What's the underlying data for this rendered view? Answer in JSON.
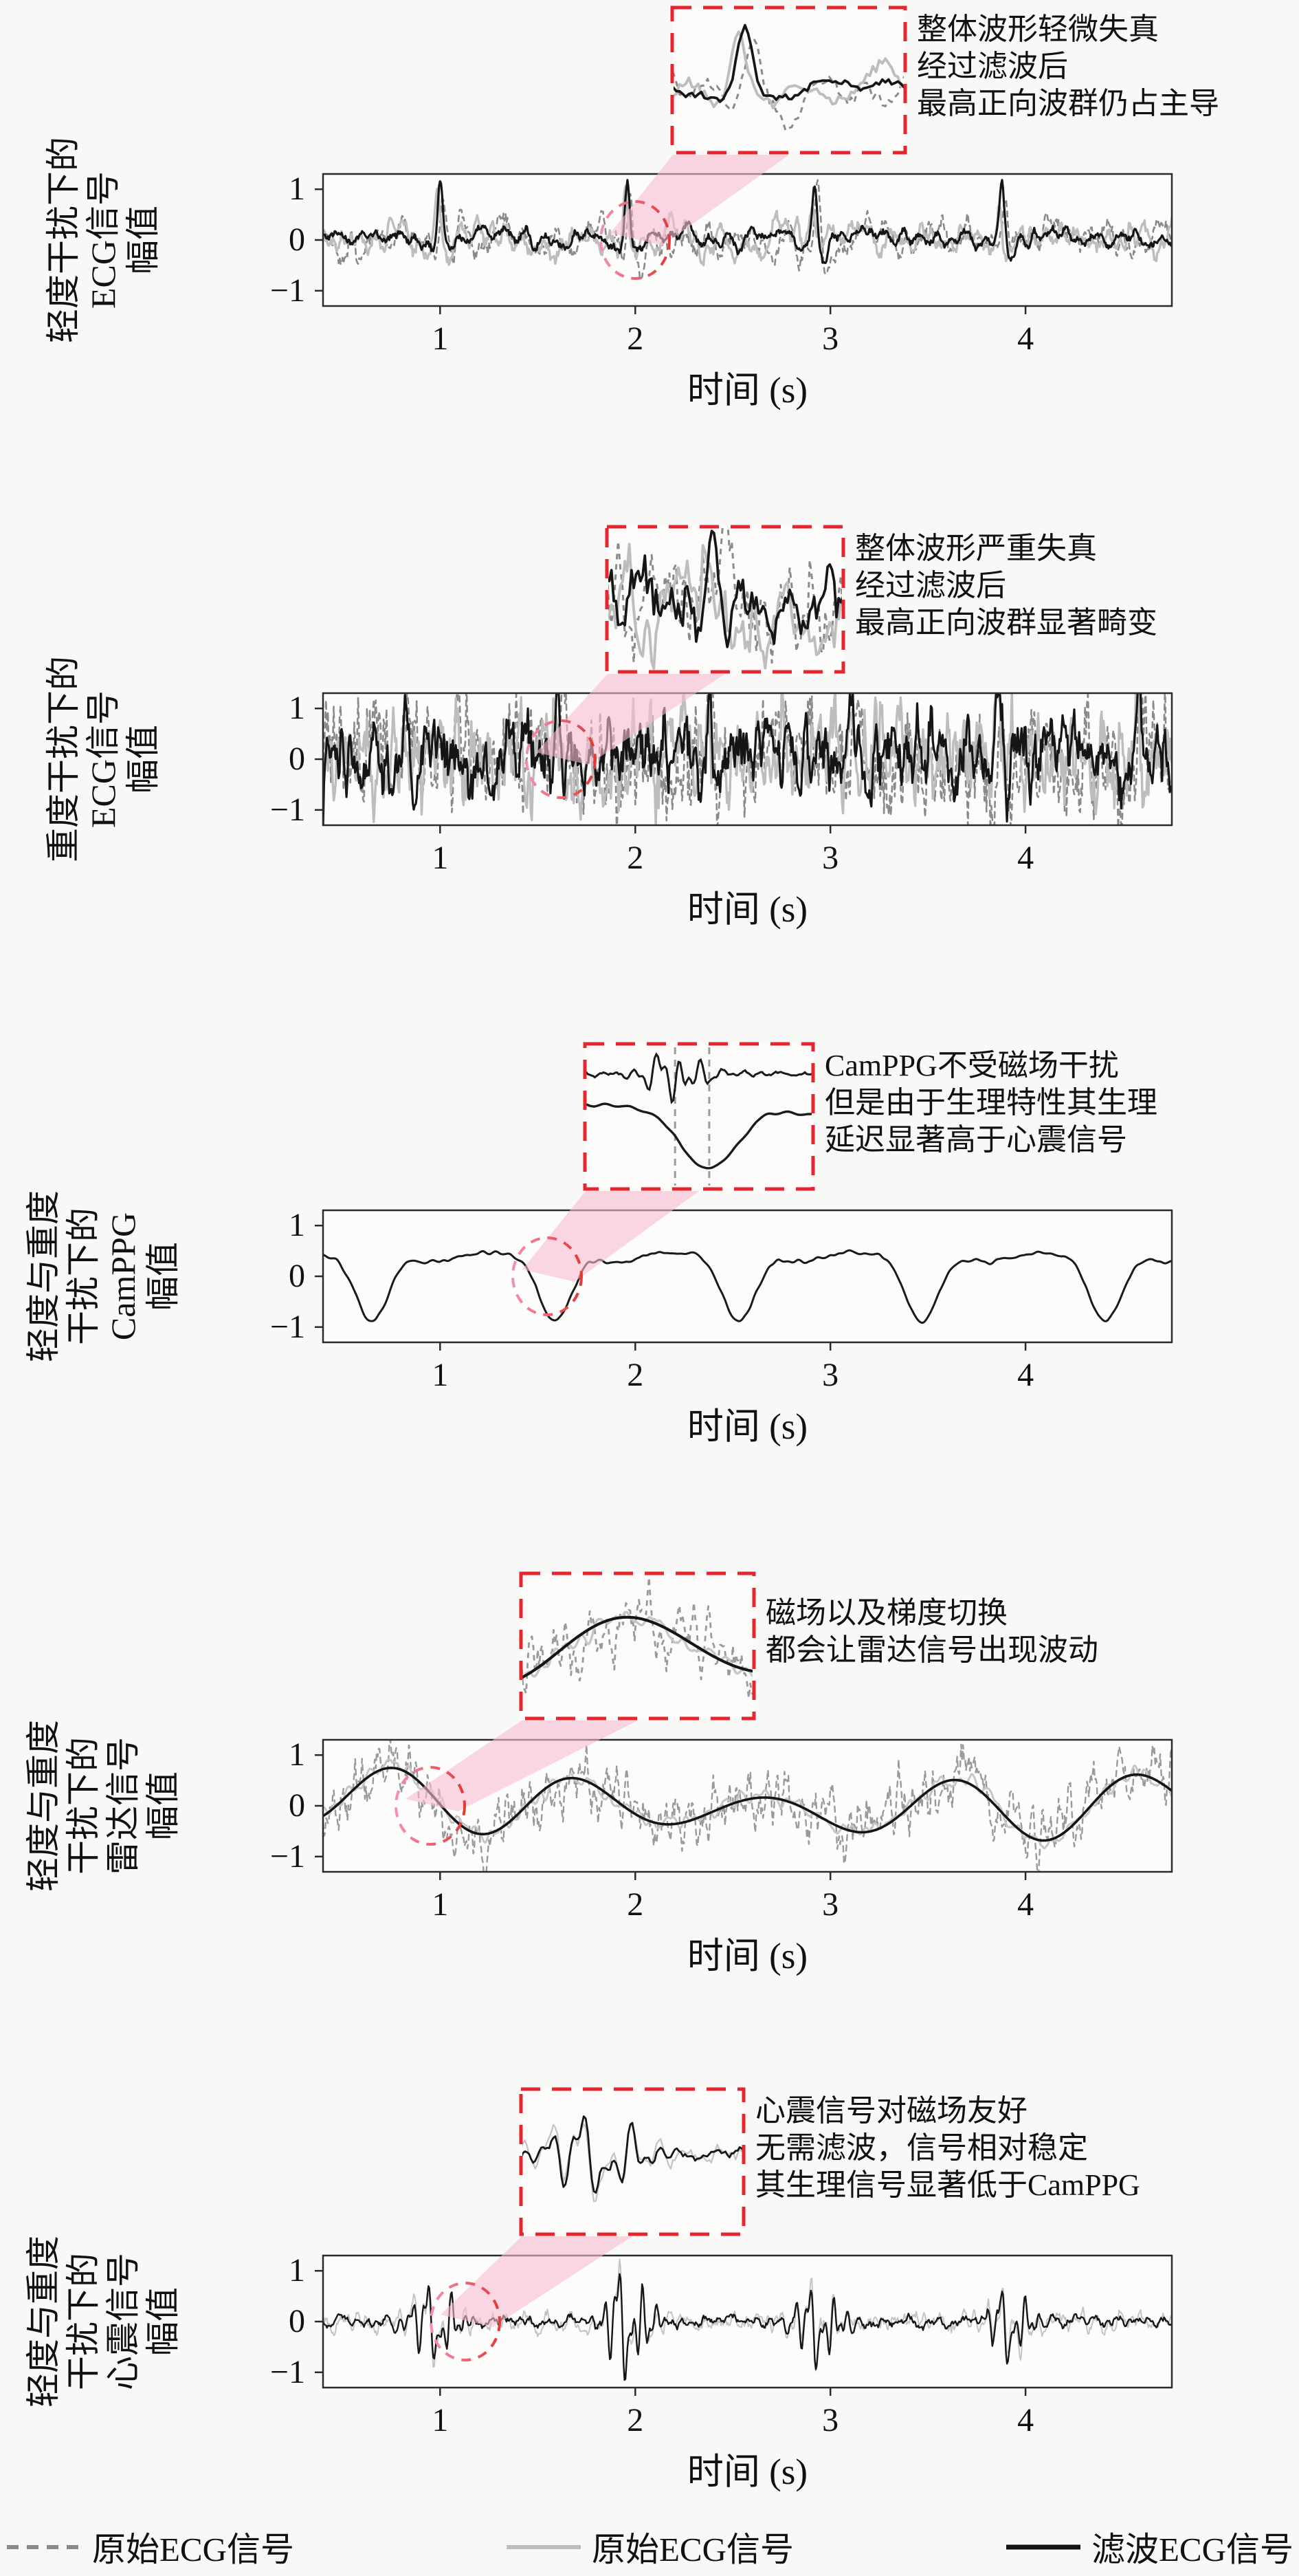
{
  "figure": {
    "background": "#f8f8f6",
    "plot_bg": "#fcfcfa",
    "inset_bg": "#fbfbf9",
    "axis_color": "#2b2b2b",
    "accent_red": "#e5262e",
    "pink_highlight": "#f9bdd2"
  },
  "legend": {
    "items": [
      {
        "label": "原始ECG信号",
        "line_style": "dashed",
        "color": "#8a8a8a"
      },
      {
        "label": "原始ECG信号",
        "line_style": "solid",
        "color": "#bdbdbd"
      },
      {
        "label": "滤波ECG信号",
        "line_style": "solid",
        "color": "#141414"
      }
    ]
  },
  "subplots": [
    {
      "id": "ecg-light",
      "ylabel_lines": [
        "轻度干扰下的",
        "ECG信号",
        "幅值"
      ],
      "annotation_lines": [
        "整体波形轻微失真",
        "经过滤波后",
        "最高正向波群仍占主导"
      ],
      "xlabel": "时间 (s)",
      "xticks": [
        "1",
        "2",
        "3",
        "4"
      ],
      "yticks": [
        "1",
        "0",
        "−1"
      ]
    },
    {
      "id": "ecg-heavy",
      "ylabel_lines": [
        "重度干扰下的",
        "ECG信号",
        "幅值"
      ],
      "annotation_lines": [
        "整体波形严重失真",
        "经过滤波后",
        "最高正向波群显著畸变"
      ],
      "xlabel": "时间 (s)",
      "xticks": [
        "1",
        "2",
        "3",
        "4"
      ],
      "yticks": [
        "1",
        "0",
        "−1"
      ]
    },
    {
      "id": "camppg",
      "ylabel_lines": [
        "轻度与重度",
        "干扰下的",
        "CamPPG",
        "幅值"
      ],
      "annotation_lines": [
        "CamPPG不受磁场干扰",
        "但是由于生理特性其生理",
        "延迟显著高于心震信号"
      ],
      "xlabel": "时间 (s)",
      "xticks": [
        "1",
        "2",
        "3",
        "4"
      ],
      "yticks": [
        "1",
        "0",
        "−1"
      ]
    },
    {
      "id": "radar",
      "ylabel_lines": [
        "轻度与重度",
        "干扰下的",
        "雷达信号",
        "幅值"
      ],
      "annotation_lines": [
        "磁场以及梯度切换",
        "都会让雷达信号出现波动"
      ],
      "xlabel": "时间 (s)",
      "xticks": [
        "1",
        "2",
        "3",
        "4"
      ],
      "yticks": [
        "1",
        "0",
        "−1"
      ]
    },
    {
      "id": "scg",
      "ylabel_lines": [
        "轻度与重度",
        "干扰下的",
        "心震信号",
        "幅值"
      ],
      "annotation_lines": [
        "心震信号对磁场友好",
        "无需滤波，信号相对稳定",
        "其生理信号显著低于CamPPG"
      ],
      "xlabel": "时间 (s)",
      "xticks": [
        "1",
        "2",
        "3",
        "4"
      ],
      "yticks": [
        "1",
        "0",
        "−1"
      ]
    }
  ],
  "chart_data": [
    {
      "type": "line",
      "signal": "ecg",
      "interference": "light",
      "xlabel": "时间 (s)",
      "xlim": [
        0.4,
        4.75
      ],
      "ylim": [
        -1.3,
        1.3
      ],
      "xticks": [
        1,
        2,
        3,
        4
      ],
      "yticks": [
        -1,
        0,
        1
      ],
      "grid": false,
      "legend_position": "figure-bottom",
      "r_peak_times": [
        1.0,
        1.96,
        2.92,
        3.88
      ],
      "r_peak_amps": [
        1,
        1,
        1,
        1
      ],
      "series": [
        {
          "role": "raw-ecg-dashed",
          "style": "dashed",
          "color": "#8a8a8a",
          "width": 2.6,
          "noise": 0.2
        },
        {
          "role": "raw-ecg-solid",
          "style": "solid",
          "color": "#bdbdbd",
          "width": 3.4,
          "noise": 0.17
        },
        {
          "role": "filtered-ecg",
          "style": "solid",
          "color": "#151515",
          "width": 3.2,
          "noise": 0.09
        }
      ],
      "highlight": {
        "circle_t": 2.0,
        "inset_window": [
          1.84,
          2.22
        ]
      }
    },
    {
      "type": "line",
      "signal": "ecg",
      "interference": "heavy",
      "xlabel": "时间 (s)",
      "xlim": [
        0.4,
        4.75
      ],
      "ylim": [
        -1.3,
        1.3
      ],
      "xticks": [
        1,
        2,
        3,
        4
      ],
      "yticks": [
        -1,
        0,
        1
      ],
      "grid": false,
      "r_peak_times": [
        0.82,
        1.6,
        2.38,
        3.12,
        3.86,
        4.58
      ],
      "r_peak_amps": [
        0.85,
        1.0,
        1.15,
        0.8,
        0.9,
        0.95
      ],
      "series": [
        {
          "role": "raw-ecg-dashed",
          "style": "dashed",
          "color": "#8a8a8a",
          "width": 2.6,
          "noise": 0.5
        },
        {
          "role": "raw-ecg-solid",
          "style": "solid",
          "color": "#bdbdbd",
          "width": 3.4,
          "noise": 0.44
        },
        {
          "role": "filtered-ecg",
          "style": "solid",
          "color": "#151515",
          "width": 3.2,
          "noise": 0.36
        }
      ],
      "highlight": {
        "circle_t": 1.62,
        "inset_window": [
          1.36,
          1.9
        ]
      }
    },
    {
      "type": "line",
      "signal": "ppg",
      "xlabel": "时间 (s)",
      "xlim": [
        0.4,
        4.75
      ],
      "ylim": [
        -1.3,
        1.3
      ],
      "xticks": [
        1,
        2,
        3,
        4
      ],
      "yticks": [
        -1,
        0,
        1
      ],
      "grid": false,
      "pulse_period": 0.94,
      "valley_times": [
        0.65,
        1.59,
        2.53,
        3.47,
        4.41
      ],
      "series": [
        {
          "role": "camppg",
          "style": "solid",
          "color": "#1a1a1a",
          "width": 3.0,
          "noise": 0.02
        }
      ],
      "highlight": {
        "circle_t": 1.55,
        "inset_window": [
          1.22,
          1.9
        ],
        "delay_marker_times": [
          1.49,
          1.59
        ]
      }
    },
    {
      "type": "line",
      "signal": "radar",
      "xlabel": "时间 (s)",
      "xlim": [
        0.4,
        4.75
      ],
      "ylim": [
        -1.3,
        1.3
      ],
      "xticks": [
        1,
        2,
        3,
        4
      ],
      "yticks": [
        -1,
        0,
        1
      ],
      "grid": false,
      "period": 0.96,
      "series": [
        {
          "role": "raw-radar-dashed",
          "style": "dashed",
          "color": "#9a9a9a",
          "width": 2.4,
          "noise": 0.33
        },
        {
          "role": "raw-radar-solid",
          "style": "solid",
          "color": "#c6c6c6",
          "width": 3.0,
          "noise": 0.08
        },
        {
          "role": "filtered-radar",
          "style": "solid",
          "color": "#151515",
          "width": 3.6,
          "noise": 0
        }
      ],
      "highlight": {
        "circle_t": 0.95,
        "inset_window": [
          1.3,
          2.12
        ]
      }
    },
    {
      "type": "line",
      "signal": "scg",
      "xlabel": "时间 (s)",
      "xlim": [
        0.4,
        4.75
      ],
      "ylim": [
        -1.3,
        1.3
      ],
      "xticks": [
        1,
        2,
        3,
        4
      ],
      "yticks": [
        -1,
        0,
        1
      ],
      "grid": false,
      "beat_times": [
        0.98,
        1.96,
        2.94,
        3.92
      ],
      "beat_amps": [
        1.0,
        1.3,
        0.95,
        0.8
      ],
      "series": [
        {
          "role": "raw-scg",
          "style": "solid",
          "color": "#c4c4c4",
          "width": 2.0,
          "noise": 0.1
        },
        {
          "role": "scg",
          "style": "solid",
          "color": "#161616",
          "width": 2.4,
          "noise": 0.06
        }
      ],
      "highlight": {
        "circle_t": 1.13,
        "inset_window": [
          0.78,
          1.34
        ]
      }
    }
  ]
}
